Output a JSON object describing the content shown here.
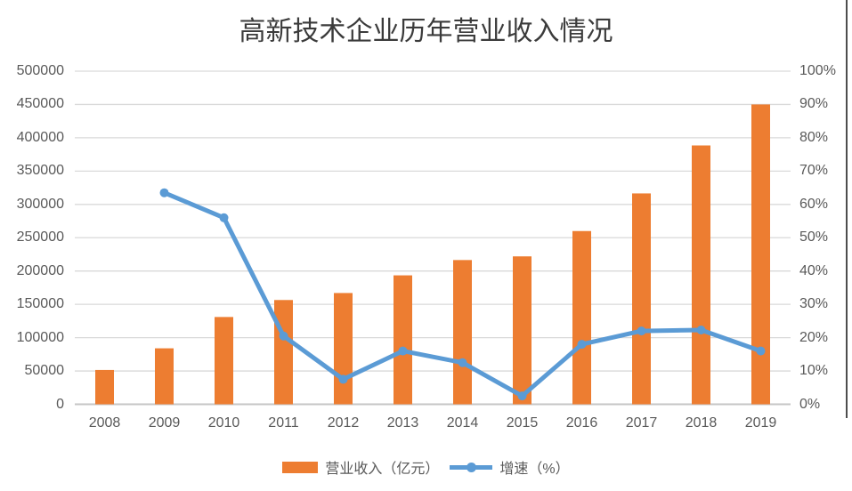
{
  "colors": {
    "bar": "#ED7D31",
    "line": "#5B9BD5",
    "gridline": "#D9D9D9",
    "axis_line": "#C6C6C6",
    "label_text": "#595959",
    "title_text": "#3B3B3B",
    "edge_line": "#4D4D4D"
  },
  "chart_data": {
    "type": "combo bar+line, dual y-axis",
    "title": "高新技术企业历年营业收入情况",
    "categories": [
      "2008",
      "2009",
      "2010",
      "2011",
      "2012",
      "2013",
      "2014",
      "2015",
      "2016",
      "2017",
      "2018",
      "2019"
    ],
    "series": [
      {
        "name": "营业收入（亿元）",
        "chart_type": "bar",
        "axis": "left",
        "color": "#ED7D31",
        "values": [
          51500,
          84000,
          131000,
          156500,
          167000,
          193500,
          216500,
          222000,
          260000,
          316500,
          388500,
          450000
        ]
      },
      {
        "name": "增速（%）",
        "chart_type": "line",
        "axis": "right",
        "color": "#5B9BD5",
        "marker": "circle",
        "values": [
          null,
          63.5,
          56.0,
          20.5,
          7.5,
          16.0,
          12.5,
          2.5,
          18.0,
          22.0,
          22.3,
          16.0
        ]
      }
    ],
    "left_axis": {
      "min": 0,
      "max": 500000,
      "step": 50000,
      "tick_labels": [
        "0",
        "50000",
        "100000",
        "150000",
        "200000",
        "250000",
        "300000",
        "350000",
        "400000",
        "450000",
        "500000"
      ]
    },
    "right_axis": {
      "min": 0,
      "max": 100,
      "step": 10,
      "tick_labels": [
        "0%",
        "10%",
        "20%",
        "30%",
        "40%",
        "50%",
        "60%",
        "70%",
        "80%",
        "90%",
        "100%"
      ]
    },
    "grid": "horizontal gridlines on",
    "legend_position": "bottom"
  }
}
